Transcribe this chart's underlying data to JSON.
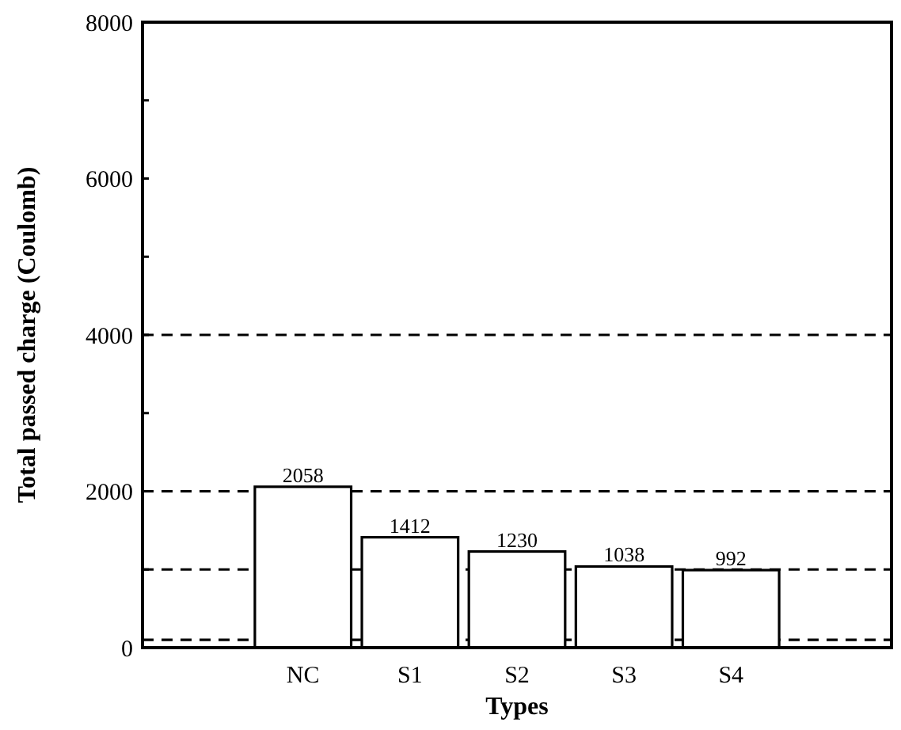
{
  "chart_data": {
    "type": "bar",
    "xlabel": "Types",
    "ylabel": "Total passed charge (Coulomb)",
    "categories": [
      null,
      "NC",
      "S1",
      "S2",
      "S3",
      "S4",
      null
    ],
    "values": [
      null,
      2058,
      1412,
      1230,
      1038,
      992,
      null
    ],
    "color": "#ffffff",
    "data_labels": true,
    "ylim": [
      0,
      8000
    ],
    "yticks": [
      0,
      {
        "value": 1000,
        "label": null
      },
      2000,
      {
        "value": 3000,
        "label": null
      },
      4000,
      {
        "value": 5000,
        "label": null
      },
      6000,
      {
        "value": 7000,
        "label": null
      },
      8000
    ],
    "ref_lines": [
      {
        "axis": "y",
        "value": 100,
        "line_style": "dashed"
      },
      {
        "axis": "y",
        "value": 1000,
        "line_style": "dashed"
      },
      {
        "axis": "y",
        "value": 2000,
        "line_style": "dashed"
      },
      {
        "axis": "y",
        "value": 4000,
        "line_style": "dashed"
      }
    ]
  }
}
